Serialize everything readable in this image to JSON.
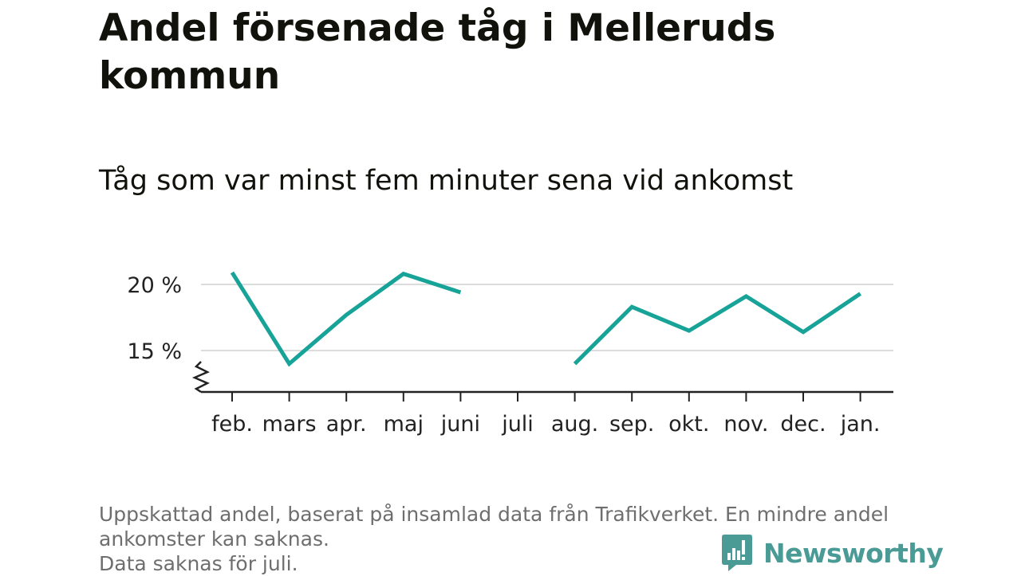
{
  "title": "Andel försenade tåg i Melleruds kommun",
  "subtitle": "Tåg som var minst fem minuter sena vid ankomst",
  "footnote": {
    "line1": "Uppskattad andel, baserat på insamlad data från Trafikverket. En mindre andel ankomster kan saknas.",
    "line2": "Data saknas för juli."
  },
  "brand": {
    "name": "Newsworthy",
    "icon": "newsworthy-logo-icon",
    "color": "#4a9b96"
  },
  "chart_data": {
    "type": "line",
    "title": "Andel försenade tåg i Melleruds kommun",
    "subtitle": "Tåg som var minst fem minuter sena vid ankomst",
    "categories": [
      "feb.",
      "mars",
      "apr.",
      "maj",
      "juni",
      "juli",
      "aug.",
      "sep.",
      "okt.",
      "nov.",
      "dec.",
      "jan."
    ],
    "series": [
      {
        "values": [
          20.9,
          14.0,
          17.7,
          20.8,
          19.4,
          null,
          14.0,
          18.3,
          16.5,
          19.1,
          16.4,
          19.3
        ],
        "color": "#17a398"
      }
    ],
    "y_ticks": [
      15,
      20
    ],
    "y_tick_labels": [
      "15 %",
      "20 %"
    ],
    "ylim": [
      12,
      21.5
    ],
    "axis_break": true,
    "grid": true,
    "legend": "none"
  }
}
